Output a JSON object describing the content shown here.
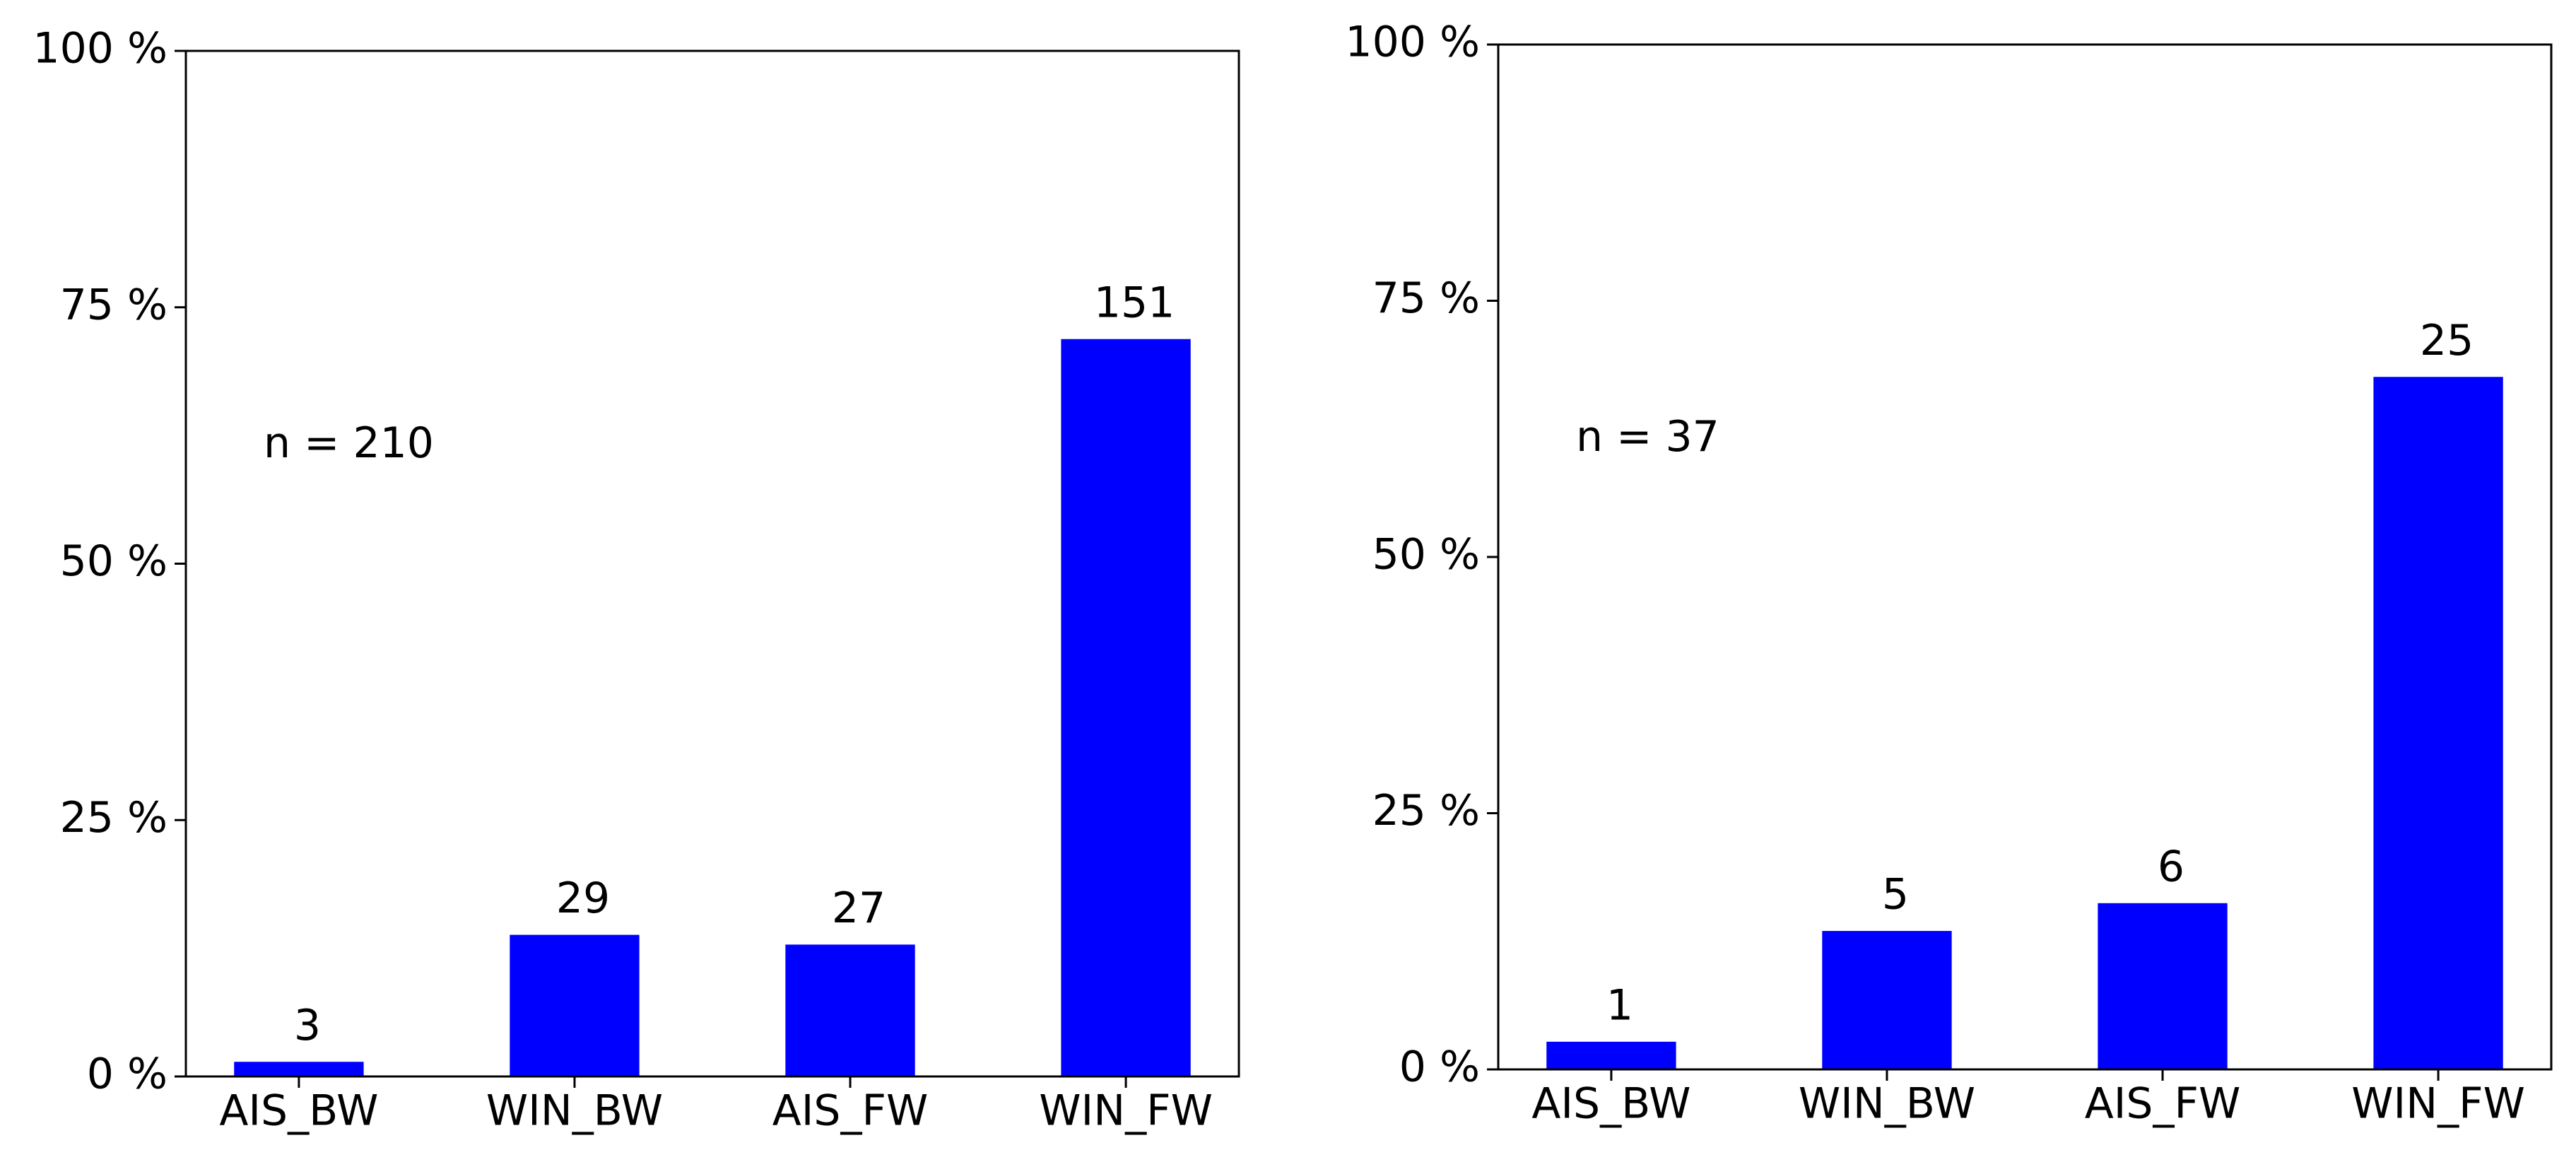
{
  "chart_data": [
    {
      "type": "bar",
      "annotation": "n = 210",
      "categories": [
        "AIS_BW",
        "WIN_BW",
        "AIS_FW",
        "WIN_FW"
      ],
      "values": [
        1.43,
        13.81,
        12.86,
        71.9
      ],
      "value_labels": [
        "3",
        "29",
        "27",
        "151"
      ],
      "color": "#0000ff",
      "ylim": [
        0,
        100
      ],
      "yticks": [
        {
          "value": 0,
          "label": "0 %"
        },
        {
          "value": 25,
          "label": "25 %"
        },
        {
          "value": 50,
          "label": "50 %"
        },
        {
          "value": 75,
          "label": "75 %"
        },
        {
          "value": 100,
          "label": "100 %"
        }
      ]
    },
    {
      "type": "bar",
      "annotation": "n = 37",
      "categories": [
        "AIS_BW",
        "WIN_BW",
        "AIS_FW",
        "WIN_FW"
      ],
      "values": [
        2.7,
        13.51,
        16.22,
        67.57
      ],
      "value_labels": [
        "1",
        "5",
        "6",
        "25"
      ],
      "color": "#0000ff",
      "ylim": [
        0,
        100
      ],
      "yticks": [
        {
          "value": 0,
          "label": "0 %"
        },
        {
          "value": 25,
          "label": "25 %"
        },
        {
          "value": 50,
          "label": "50 %"
        },
        {
          "value": 75,
          "label": "75 %"
        },
        {
          "value": 100,
          "label": "100 %"
        }
      ]
    }
  ]
}
